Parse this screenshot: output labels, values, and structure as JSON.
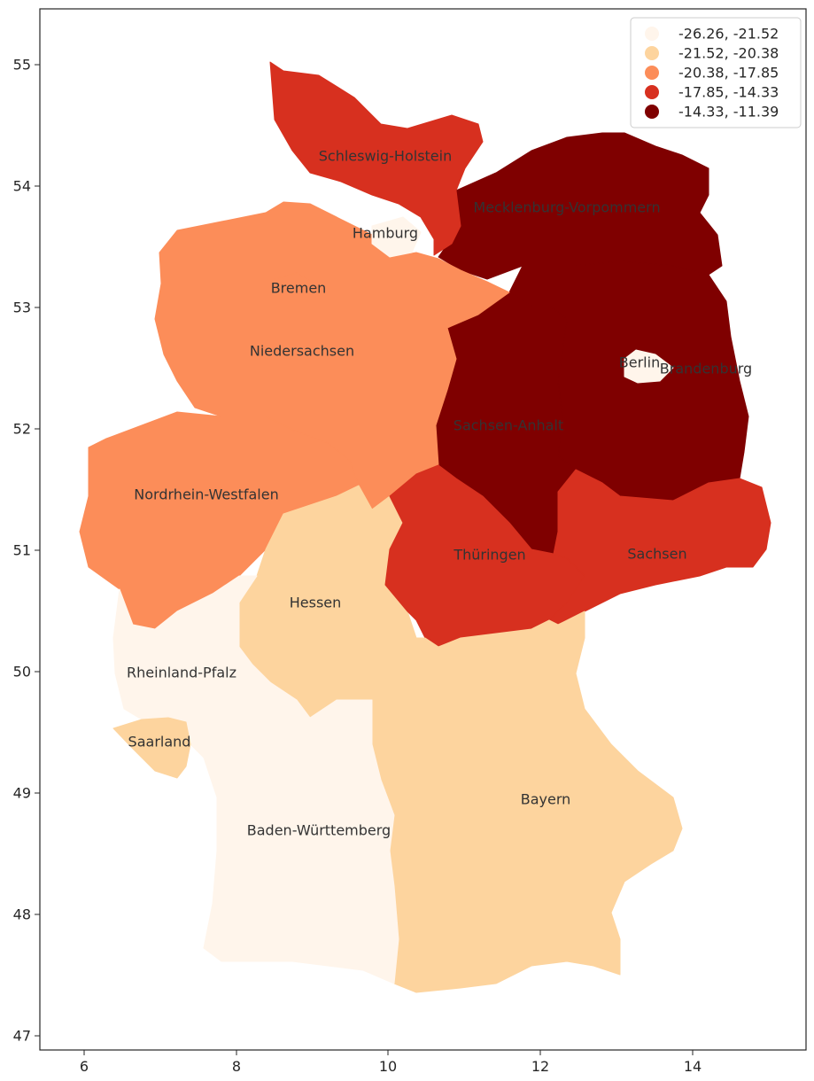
{
  "colors": {
    "class_1": "#fff5eb",
    "class_2": "#fdd49e",
    "class_3": "#fc8d59",
    "class_4": "#d7301f",
    "class_5": "#7f0000",
    "axis": "#262626",
    "label": "#333333",
    "legend_border": "#cccccc"
  },
  "chart_data": {
    "type": "choropleth",
    "x_ticks": [
      "6",
      "8",
      "10",
      "12",
      "14"
    ],
    "y_ticks": [
      "47",
      "48",
      "49",
      "50",
      "51",
      "52",
      "53",
      "54",
      "55"
    ],
    "xlim": [
      5.4,
      15.5
    ],
    "ylim": [
      46.9,
      55.5
    ],
    "legend": {
      "placement": "top-right",
      "entries": [
        {
          "label": "-26.26, -21.52",
          "color_class": "class_1"
        },
        {
          "label": "-21.52, -20.38",
          "color_class": "class_2"
        },
        {
          "label": "-20.38, -17.85",
          "color_class": "class_3"
        },
        {
          "label": "-17.85, -14.33",
          "color_class": "class_4"
        },
        {
          "label": "-14.33, -11.39",
          "color_class": "class_5"
        }
      ]
    },
    "regions": [
      {
        "name": "Schleswig-Holstein",
        "class": "class_4"
      },
      {
        "name": "Hamburg",
        "class": "class_1"
      },
      {
        "name": "Mecklenburg-Vorpommern",
        "class": "class_5"
      },
      {
        "name": "Bremen",
        "class": "class_3"
      },
      {
        "name": "Niedersachsen",
        "class": "class_3"
      },
      {
        "name": "Berlin",
        "class": "class_1"
      },
      {
        "name": "Brandenburg",
        "class": "class_5"
      },
      {
        "name": "Sachsen-Anhalt",
        "class": "class_5"
      },
      {
        "name": "Nordrhein-Westfalen",
        "class": "class_3"
      },
      {
        "name": "Thüringen",
        "class": "class_4"
      },
      {
        "name": "Sachsen",
        "class": "class_4"
      },
      {
        "name": "Hessen",
        "class": "class_2"
      },
      {
        "name": "Rheinland-Pfalz",
        "class": "class_1"
      },
      {
        "name": "Saarland",
        "class": "class_2"
      },
      {
        "name": "Bayern",
        "class": "class_2"
      },
      {
        "name": "Baden-Württemberg",
        "class": "class_1"
      }
    ]
  }
}
